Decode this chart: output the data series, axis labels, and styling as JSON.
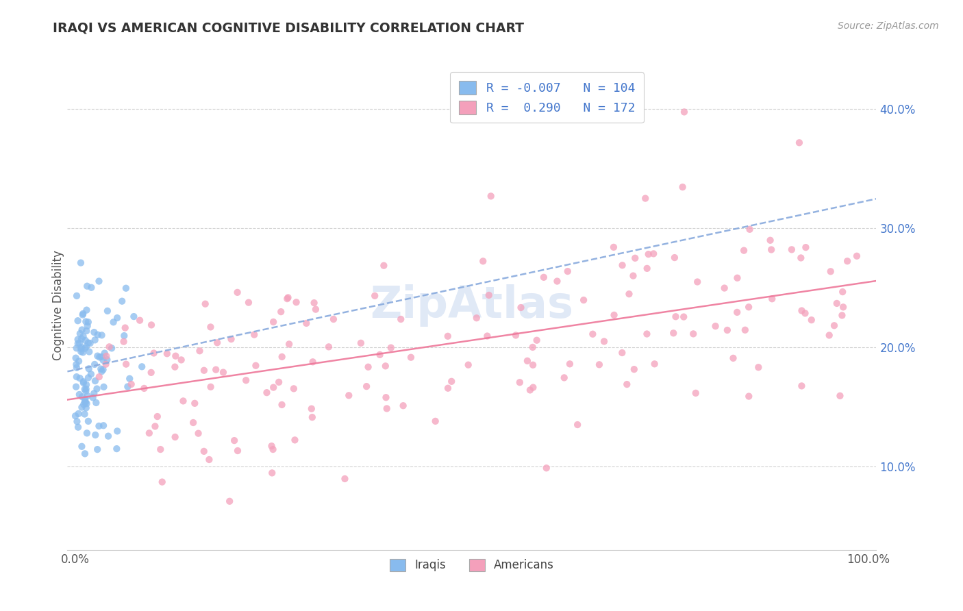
{
  "title": "IRAQI VS AMERICAN COGNITIVE DISABILITY CORRELATION CHART",
  "source": "Source: ZipAtlas.com",
  "ylabel": "Cognitive Disability",
  "xlim": [
    -0.01,
    1.01
  ],
  "ylim": [
    0.03,
    0.44
  ],
  "xtick_positions": [
    0.0,
    1.0
  ],
  "xtick_labels": [
    "0.0%",
    "100.0%"
  ],
  "ytick_values": [
    0.1,
    0.2,
    0.3,
    0.4
  ],
  "ytick_labels": [
    "10.0%",
    "20.0%",
    "30.0%",
    "40.0%"
  ],
  "legend_label1": "R = -0.007   N = 104",
  "legend_label2": "R =  0.290   N = 172",
  "bottom_legend": [
    "Iraqis",
    "Americans"
  ],
  "iraqis_color": "#88bbee",
  "americans_color": "#f4a0bb",
  "trend_iraqis_color": "#88aadd",
  "trend_americans_color": "#ee7799",
  "watermark": "ZipAtlas",
  "background_color": "#ffffff",
  "grid_color": "#cccccc",
  "title_color": "#333333",
  "source_color": "#999999",
  "ytick_color": "#4477cc",
  "xtick_color": "#555555",
  "ylabel_color": "#555555"
}
